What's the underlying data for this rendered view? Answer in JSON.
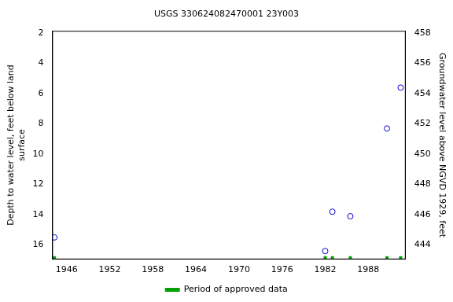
{
  "chart_data": {
    "type": "scatter",
    "title": "USGS 330624082470001 23Y003",
    "y_label": [
      "Depth to water level, feet below land",
      "surface"
    ],
    "y2_label": "Groundwater level above NGVD 1929, feet",
    "xlim": [
      1944,
      1993.2
    ],
    "xticks": [
      1946,
      1952,
      1958,
      1964,
      1970,
      1976,
      1982,
      1988
    ],
    "ylim": [
      1.85,
      16.95
    ],
    "yticks": [
      2,
      4,
      6,
      8,
      10,
      12,
      14,
      16
    ],
    "y2lim": [
      443.05,
      458.15
    ],
    "y2ticks": [
      444,
      446,
      448,
      450,
      452,
      454,
      456,
      458
    ],
    "grid": false,
    "legend": "bottom",
    "series": [
      {
        "color": "#0000cc",
        "marker": "circle",
        "x": [
          1944.3,
          1982.0,
          1983.0,
          1985.5,
          1990.6,
          1992.5
        ],
        "values": [
          15.5,
          16.4,
          13.8,
          14.1,
          8.3,
          5.6
        ]
      },
      {
        "name": "Period of approved data",
        "color": "#00a000",
        "type": "period",
        "periods": [
          [
            1944.3,
            1944.3
          ],
          [
            1982.0,
            1982.0
          ],
          [
            1983.0,
            1983.0
          ],
          [
            1985.5,
            1985.5
          ],
          [
            1990.6,
            1990.6
          ],
          [
            1992.5,
            1992.5
          ]
        ]
      }
    ]
  }
}
